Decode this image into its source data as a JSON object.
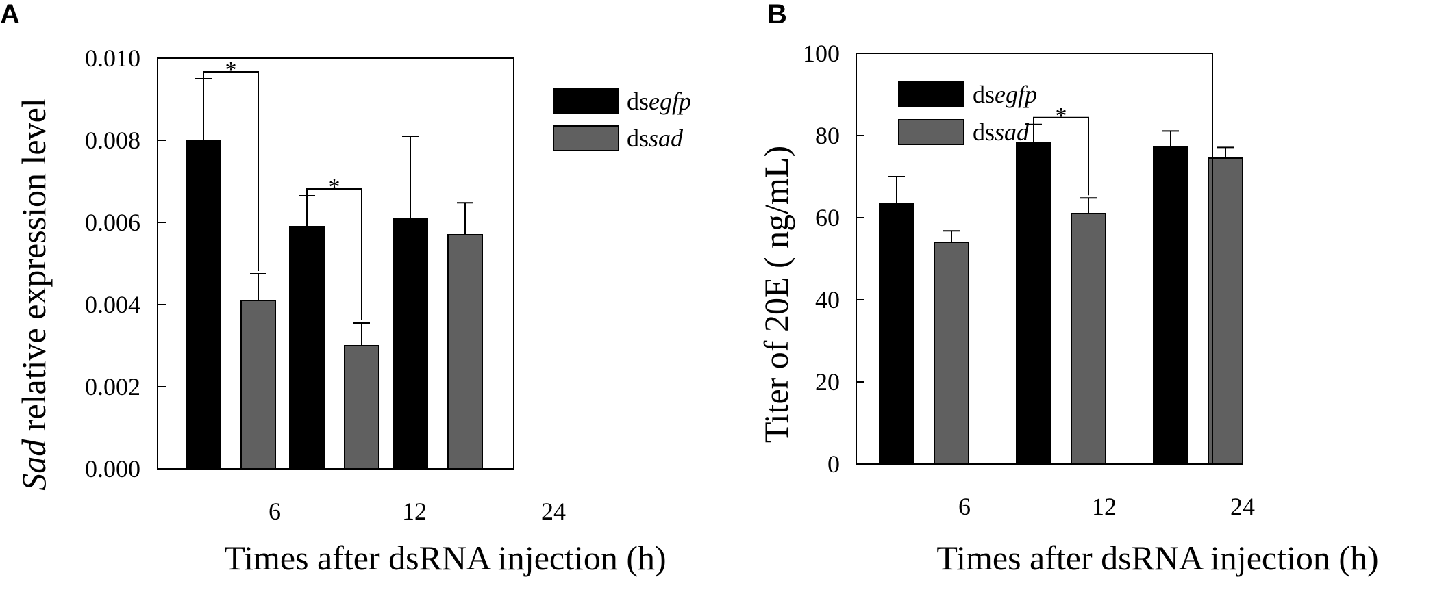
{
  "chart_data": [
    {
      "panel": "A",
      "type": "bar",
      "categories": [
        "6",
        "12",
        "24"
      ],
      "series": [
        {
          "name": "dsegfp",
          "name_prefix": "ds",
          "name_italic": "egfp",
          "color": "#000000",
          "values": [
            0.008,
            0.0059,
            0.0061
          ],
          "errors": [
            0.0015,
            0.00075,
            0.002
          ]
        },
        {
          "name": "dssad",
          "name_prefix": "ds",
          "name_italic": "sad",
          "color": "#606060",
          "values": [
            0.0041,
            0.003,
            0.0057
          ],
          "errors": [
            0.00065,
            0.00055,
            0.00078
          ]
        }
      ],
      "significance": [
        {
          "category": "6",
          "label": "*"
        },
        {
          "category": "12",
          "label": "*"
        }
      ],
      "ylim": [
        0,
        0.01
      ],
      "yticks": [
        "0.000",
        "0.002",
        "0.004",
        "0.006",
        "0.008",
        "0.010"
      ],
      "ylabel": "Sad relative expression level",
      "ylabel_italic": "Sad",
      "ylabel_rest": " relative expression level",
      "xlabel": "Times after dsRNA injection (h)",
      "legend_position": "top-right"
    },
    {
      "panel": "B",
      "type": "bar",
      "categories": [
        "6",
        "12",
        "24"
      ],
      "series": [
        {
          "name": "dsegfp",
          "name_prefix": "ds",
          "name_italic": "egfp",
          "color": "#000000",
          "values": [
            63.5,
            78.2,
            77.3
          ],
          "errors": [
            6.5,
            4.5,
            3.8
          ]
        },
        {
          "name": "dssad",
          "name_prefix": "ds",
          "name_italic": "sad",
          "color": "#606060",
          "values": [
            54.0,
            61.0,
            74.5
          ],
          "errors": [
            2.8,
            3.8,
            2.6
          ]
        }
      ],
      "significance": [
        {
          "category": "12",
          "label": "*"
        }
      ],
      "ylim": [
        0,
        100
      ],
      "yticks": [
        "0",
        "20",
        "40",
        "60",
        "80",
        "100"
      ],
      "ylabel": "Titer of 20E ( ng/mL)",
      "xlabel": "Times after dsRNA injection (h)",
      "legend_position": "top-left"
    }
  ]
}
